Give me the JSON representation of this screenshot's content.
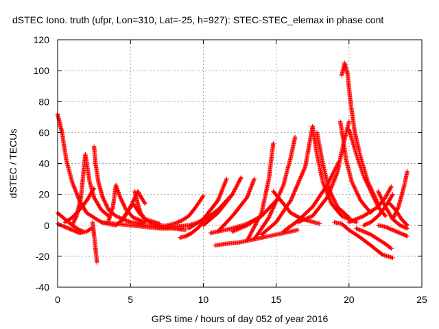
{
  "chart_data": {
    "type": "scatter",
    "title": "dSTEC Iono. truth (ufpr, Lon=310, Lat=-25, h=927): STEC-STEC_elemax in phase cont",
    "xlabel": "GPS time / hours of day 052 of year 2016",
    "ylabel": "dSTEC  / TECUs",
    "xlim": [
      0,
      25
    ],
    "ylim": [
      -40,
      120
    ],
    "xticks": [
      0,
      5,
      10,
      15,
      20,
      25
    ],
    "yticks": [
      -40,
      -20,
      0,
      20,
      40,
      60,
      80,
      100,
      120
    ],
    "xtick_labels": [
      "0",
      "5",
      "10",
      "15",
      "20",
      "25"
    ],
    "ytick_labels": [
      "-40",
      "-20",
      "0",
      "20",
      "40",
      "60",
      "80",
      "100",
      "120"
    ],
    "grid": true,
    "marker": "+",
    "marker_color": "#ff0000",
    "series": [
      {
        "x": [
          0.0,
          0.3,
          0.6,
          1.0,
          1.5,
          2.0,
          3.0,
          4.0
        ],
        "y": [
          72,
          60,
          42,
          28,
          16,
          8,
          2,
          0
        ]
      },
      {
        "x": [
          0.0,
          0.5,
          1.0,
          1.5,
          1.75
        ],
        "y": [
          8,
          4,
          0,
          -3,
          -4
        ]
      },
      {
        "x": [
          0.0,
          0.5,
          1.0,
          1.5,
          2.0,
          2.3
        ],
        "y": [
          1,
          -1,
          -3,
          -5,
          -4,
          -2
        ]
      },
      {
        "x": [
          1.0,
          1.3,
          1.6,
          1.75,
          1.9,
          2.2,
          2.5,
          3.0,
          3.5
        ],
        "y": [
          0,
          6,
          18,
          32,
          46,
          28,
          18,
          10,
          6
        ]
      },
      {
        "x": [
          2.4,
          2.5,
          2.6,
          2.7
        ],
        "y": [
          2,
          -6,
          -15,
          -24
        ]
      },
      {
        "x": [
          2.5,
          2.6,
          2.8,
          3.1,
          3.5,
          4.0,
          5.0,
          6.0
        ],
        "y": [
          51,
          40,
          28,
          18,
          10,
          6,
          2,
          1
        ]
      },
      {
        "x": [
          0.5,
          1.0,
          1.5,
          2.0,
          2.5
        ],
        "y": [
          2,
          5,
          10,
          16,
          24
        ]
      },
      {
        "x": [
          3.5,
          3.8,
          4.0,
          4.3,
          4.7,
          5.2,
          6.0
        ],
        "y": [
          3,
          12,
          26,
          18,
          10,
          5,
          2
        ]
      },
      {
        "x": [
          4.0,
          4.5,
          5.0,
          5.5,
          6.0
        ],
        "y": [
          0,
          4,
          12,
          22,
          14
        ]
      },
      {
        "x": [
          4.4,
          4.8,
          5.2,
          5.6,
          6.0,
          7.0
        ],
        "y": [
          3,
          9,
          14,
          8,
          4,
          1
        ]
      },
      {
        "x": [
          5.5,
          6.0,
          7.0,
          8.0,
          8.5
        ],
        "y": [
          1,
          0,
          -1,
          -2,
          -2
        ]
      },
      {
        "x": [
          5.3,
          5.5,
          5.7,
          6.0,
          6.5,
          7.0,
          8.0
        ],
        "y": [
          22,
          14,
          8,
          4,
          1,
          0,
          -1
        ]
      },
      {
        "x": [
          3.0,
          4.0,
          5.0,
          6.0,
          7.0,
          8.0,
          8.8
        ],
        "y": [
          2,
          1,
          0,
          -1,
          -2,
          -2,
          -3
        ]
      },
      {
        "x": [
          7.5,
          8.0,
          8.5,
          9.0,
          9.5,
          10.0
        ],
        "y": [
          0,
          1,
          3,
          6,
          12,
          19
        ]
      },
      {
        "x": [
          8.4,
          8.8,
          9.2,
          9.6,
          10.0
        ],
        "y": [
          -8,
          -7,
          -5,
          -2,
          2
        ]
      },
      {
        "x": [
          8.0,
          9.0,
          10.0,
          11.0,
          12.0
        ],
        "y": [
          -1,
          0,
          3,
          10,
          20
        ]
      },
      {
        "x": [
          9.0,
          10.0,
          11.0,
          11.6
        ],
        "y": [
          -2,
          4,
          16,
          30
        ]
      },
      {
        "x": [
          10.0,
          11.0,
          12.0,
          12.6
        ],
        "y": [
          0,
          8,
          20,
          31
        ]
      },
      {
        "x": [
          10.5,
          11.0,
          12.0,
          13.0,
          14.0
        ],
        "y": [
          -5,
          -4,
          -2,
          1,
          6
        ]
      },
      {
        "x": [
          11.0,
          12.0,
          13.0,
          13.5
        ],
        "y": [
          -4,
          6,
          18,
          30
        ]
      },
      {
        "x": [
          10.8,
          11.5,
          12.5,
          13.5,
          14.5,
          15.5,
          16.5
        ],
        "y": [
          -13,
          -12,
          -11,
          -9,
          -7,
          -5,
          -3
        ]
      },
      {
        "x": [
          13.0,
          14.0,
          14.5,
          14.8
        ],
        "y": [
          -10,
          8,
          30,
          53
        ]
      },
      {
        "x": [
          13.5,
          14.5,
          15.5,
          16.0,
          16.3
        ],
        "y": [
          -9,
          5,
          26,
          44,
          57
        ]
      },
      {
        "x": [
          12.0,
          13.0,
          14.0,
          15.0
        ],
        "y": [
          -4,
          0,
          6,
          16
        ]
      },
      {
        "x": [
          14.8,
          15.5,
          16.0,
          16.8,
          18.0
        ],
        "y": [
          22,
          14,
          8,
          4,
          1
        ]
      },
      {
        "x": [
          14.0,
          15.0,
          16.0,
          17.0,
          17.5
        ],
        "y": [
          -6,
          2,
          16,
          38,
          64
        ]
      },
      {
        "x": [
          17.5,
          17.8,
          18.2,
          18.8,
          19.5,
          20.5
        ],
        "y": [
          64,
          46,
          28,
          14,
          6,
          2
        ]
      },
      {
        "x": [
          17.8,
          18.2,
          18.6,
          19.2,
          20.0
        ],
        "y": [
          60,
          40,
          24,
          12,
          5
        ]
      },
      {
        "x": [
          15.5,
          16.5,
          17.5,
          18.5,
          19.3
        ],
        "y": [
          -4,
          3,
          12,
          26,
          41
        ]
      },
      {
        "x": [
          16.5,
          17.5,
          18.5,
          19.2,
          19.6,
          20.0
        ],
        "y": [
          2,
          6,
          18,
          34,
          52,
          67
        ]
      },
      {
        "x": [
          19.4,
          19.6,
          19.8,
          20.2,
          20.8,
          21.5
        ],
        "y": [
          67,
          56,
          42,
          28,
          16,
          8
        ]
      },
      {
        "x": [
          19.5,
          19.7,
          19.9,
          20.1,
          20.4,
          20.8,
          21.3,
          22.0
        ],
        "y": [
          97,
          105,
          98,
          80,
          60,
          44,
          28,
          14
        ]
      },
      {
        "x": [
          20.0,
          20.5,
          21.0,
          21.5,
          22.0,
          22.5
        ],
        "y": [
          62,
          46,
          32,
          22,
          12,
          6
        ]
      },
      {
        "x": [
          19.0,
          19.5,
          20.0,
          20.8,
          21.5,
          22.3,
          23.0
        ],
        "y": [
          2,
          1,
          -3,
          -8,
          -13,
          -19,
          -21
        ]
      },
      {
        "x": [
          20.5,
          21.0,
          21.5,
          22.0,
          22.5,
          22.9
        ],
        "y": [
          -2,
          -4,
          -6,
          -9,
          -12,
          -15
        ]
      },
      {
        "x": [
          20.0,
          21.0,
          22.0,
          22.5,
          22.9
        ],
        "y": [
          2,
          6,
          12,
          18,
          25
        ]
      },
      {
        "x": [
          22.0,
          22.5,
          23.0,
          23.5,
          24.0
        ],
        "y": [
          22,
          12,
          4,
          0,
          -2
        ]
      },
      {
        "x": [
          23.0,
          23.4,
          23.8,
          24.0
        ],
        "y": [
          4,
          12,
          26,
          35
        ]
      },
      {
        "x": [
          22.8,
          23.2,
          23.6,
          24.0
        ],
        "y": [
          14,
          10,
          4,
          0
        ]
      },
      {
        "x": [
          22.0,
          22.5,
          23.0,
          23.5,
          24.0
        ],
        "y": [
          0,
          -1,
          -3,
          -5,
          -7
        ]
      },
      {
        "x": [
          21.0,
          21.5,
          22.0,
          22.5,
          23.0
        ],
        "y": [
          0,
          2,
          6,
          12,
          20
        ]
      }
    ]
  }
}
